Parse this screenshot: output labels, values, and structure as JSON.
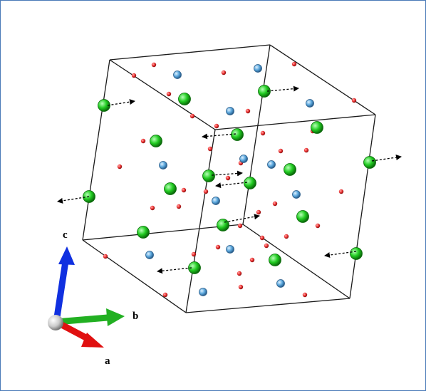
{
  "axes": {
    "a": {
      "label": "a",
      "color": "#e01010"
    },
    "b": {
      "label": "b",
      "color": "#22b022"
    },
    "c": {
      "label": "c",
      "color": "#1030e0"
    }
  },
  "colors": {
    "frame_border": "#4a7ab8",
    "cell_edges": "#1a1a1a",
    "large_atom": "#22cc22",
    "medium_atom": "#5aa7dd",
    "small_atom": "#ee3333",
    "displacement_arrow": "#000000",
    "origin_sphere": "#cccccc"
  },
  "atom_types": {
    "large": "green-sphere",
    "medium": "blue-sphere",
    "small": "red-sphere"
  },
  "arrow_style": "dashed-displacement-arrow"
}
